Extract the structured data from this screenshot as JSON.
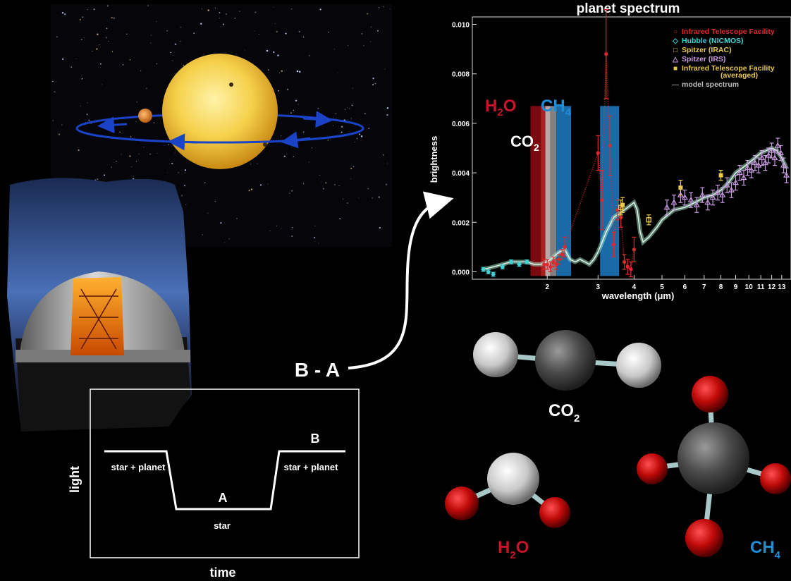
{
  "colors": {
    "background": "#000000",
    "h2o": "#c8142a",
    "ch4": "#1d8fd8",
    "co2": "#ffffff",
    "orbit": "#1a43c8",
    "sun": "#f2c63a",
    "model": "#9fd8c0",
    "irtf": "#e0282e",
    "hubble": "#3fd4d8",
    "irac": "#e8c84a",
    "irs": "#c89ae0"
  },
  "arrow_label": "B - A",
  "molecules": {
    "co2_label": "CO",
    "co2_sub": "2",
    "h2o_label_h": "H",
    "h2o_sub": "2",
    "h2o_label_o": "O",
    "ch4_label": "CH",
    "ch4_sub": "4"
  },
  "light_curve": {
    "ylabel": "light",
    "xlabel": "time",
    "point_a": "A",
    "point_b": "B",
    "label_left": "star + planet",
    "label_right": "star + planet",
    "label_bottom": "star"
  },
  "chart_data": {
    "type": "scatter",
    "title": "planet spectrum",
    "xlabel": "wavelength (μm)",
    "ylabel": "brightness",
    "xscale": "log",
    "xlim": [
      1.1,
      14
    ],
    "ylim": [
      -0.0003,
      0.0103
    ],
    "x_ticks": [
      2,
      3,
      4,
      5,
      6,
      7,
      8,
      9,
      10,
      11,
      12,
      13
    ],
    "y_ticks": [
      "0.000",
      "0.002",
      "0.004",
      "0.006",
      "0.008",
      "0.010"
    ],
    "y_tick_values": [
      0,
      0.002,
      0.004,
      0.006,
      0.008,
      0.01
    ],
    "band_labels": {
      "h2o_h": "H",
      "h2o_sub": "2",
      "h2o_o": "O",
      "ch4": "CH",
      "ch4_sub": "4",
      "co2": "CO",
      "co2_sub": "2"
    },
    "bands": [
      {
        "from": 1.75,
        "to": 1.9,
        "color": "#7a0a10"
      },
      {
        "from": 1.9,
        "to": 1.97,
        "color": "#a82020"
      },
      {
        "from": 1.97,
        "to": 2.05,
        "color": "#b8a8a8"
      },
      {
        "from": 2.05,
        "to": 2.15,
        "color": "#808080"
      },
      {
        "from": 2.15,
        "to": 2.42,
        "color": "#1a6aa8"
      },
      {
        "from": 3.05,
        "to": 3.55,
        "color": "#1a6aa8"
      }
    ],
    "band_top": 0.0067,
    "legend": {
      "position": "top-right",
      "entries": [
        {
          "label": "Infrared Telescope Facility",
          "marker": "○",
          "color": "#e0282e"
        },
        {
          "label": "Hubble  (NICMOS)",
          "marker": "◇",
          "color": "#3fd4d8"
        },
        {
          "label": "Spitzer (IRAC)",
          "marker": "□",
          "color": "#e8c84a"
        },
        {
          "label": "Spitzer (IRS)",
          "marker": "△",
          "color": "#c89ae0"
        },
        {
          "label": "Infrared Telescope Facility",
          "label2": "(averaged)",
          "marker": "■",
          "color": "#e8c84a"
        },
        {
          "label": "model spectrum",
          "marker": "—",
          "color": "#9a9a9a"
        }
      ]
    },
    "series": [
      {
        "name": "model spectrum",
        "style": "line",
        "color": "#9fd8c0",
        "x": [
          1.2,
          1.3,
          1.4,
          1.5,
          1.6,
          1.7,
          1.8,
          1.9,
          2.0,
          2.1,
          2.2,
          2.3,
          2.4,
          2.5,
          2.6,
          2.7,
          2.8,
          2.9,
          3.0,
          3.1,
          3.2,
          3.3,
          3.4,
          3.5,
          3.6,
          3.7,
          3.8,
          3.9,
          4.0,
          4.1,
          4.2,
          4.3,
          4.5,
          4.8,
          5.0,
          5.5,
          6.0,
          6.5,
          7.0,
          7.5,
          8.0,
          8.5,
          9.0,
          9.5,
          10.0,
          10.5,
          11.0,
          11.5,
          12.0,
          12.5,
          13.0,
          13.5
        ],
        "y": [
          0.0001,
          0.0002,
          0.0003,
          0.0004,
          0.0004,
          0.0004,
          0.0003,
          0.0003,
          0.0004,
          0.0006,
          0.0008,
          0.0009,
          0.0005,
          0.0004,
          0.0005,
          0.0004,
          0.0003,
          0.0005,
          0.0008,
          0.0012,
          0.0016,
          0.0019,
          0.0022,
          0.0023,
          0.0024,
          0.0025,
          0.0026,
          0.0027,
          0.0028,
          0.0025,
          0.0016,
          0.0012,
          0.0014,
          0.0018,
          0.0021,
          0.0025,
          0.0026,
          0.0028,
          0.003,
          0.0031,
          0.0033,
          0.0036,
          0.004,
          0.0042,
          0.0044,
          0.0046,
          0.0048,
          0.0049,
          0.005,
          0.0049,
          0.0046,
          0.0042
        ]
      },
      {
        "name": "Hubble  (NICMOS)",
        "style": "diamond",
        "color": "#3fd4d8",
        "x": [
          1.2,
          1.25,
          1.3,
          1.4,
          1.5,
          1.6,
          1.7
        ],
        "y": [
          0.0001,
          0.0,
          -0.0001,
          0.0002,
          0.0004,
          0.0003,
          0.0004
        ],
        "err": [
          8e-05,
          8e-05,
          8e-05,
          8e-05,
          8e-05,
          8e-05,
          8e-05
        ]
      },
      {
        "name": "Infrared Telescope Facility",
        "style": "circle",
        "color": "#e0282e",
        "x": [
          1.95,
          2.0,
          2.05,
          2.1,
          2.15,
          2.2,
          2.25,
          2.3,
          3.0,
          3.1,
          3.2,
          3.3,
          3.4,
          3.5,
          3.6,
          3.7,
          3.8,
          3.9,
          4.0
        ],
        "y": [
          0.0003,
          0.0003,
          0.0002,
          0.0004,
          0.0003,
          0.0005,
          0.0007,
          0.001,
          0.0048,
          0.0029,
          0.0088,
          0.0051,
          0.0011,
          0.0025,
          0.0022,
          0.0004,
          0.0002,
          0.0001,
          0.0009
        ],
        "err": [
          0.0002,
          0.0002,
          0.0002,
          0.0002,
          0.0002,
          0.0002,
          0.0002,
          0.0004,
          0.0007,
          0.0012,
          0.0018,
          0.0012,
          0.0005,
          0.0004,
          0.0004,
          0.0003,
          0.0003,
          0.0003,
          0.0005
        ],
        "dotted": true
      },
      {
        "name": "Spitzer (IRAC)",
        "style": "square",
        "color": "#e8c84a",
        "x": [
          3.6,
          4.5
        ],
        "y": [
          0.0026,
          0.0021
        ],
        "err": [
          0.0003,
          0.0002
        ]
      },
      {
        "name": "Spitzer (IRS)",
        "style": "triangle",
        "color": "#c89ae0",
        "x": [
          5.2,
          5.5,
          5.8,
          6.0,
          6.3,
          6.6,
          6.9,
          7.2,
          7.5,
          7.8,
          8.1,
          8.4,
          8.7,
          9.0,
          9.3,
          9.6,
          9.9,
          10.2,
          10.5,
          10.8,
          11.1,
          11.4,
          11.7,
          12.0,
          12.3,
          12.6,
          12.9,
          13.2,
          13.5
        ],
        "y": [
          0.0026,
          0.0028,
          0.0031,
          0.003,
          0.0029,
          0.0027,
          0.0031,
          0.0028,
          0.003,
          0.0032,
          0.0031,
          0.0035,
          0.0033,
          0.0036,
          0.004,
          0.0038,
          0.0042,
          0.0041,
          0.0044,
          0.0043,
          0.0046,
          0.0044,
          0.0047,
          0.0049,
          0.0046,
          0.0051,
          0.0048,
          0.0043,
          0.0039
        ],
        "err": [
          0.0003,
          0.0003,
          0.0003,
          0.0003,
          0.0003,
          0.0003,
          0.0003,
          0.0003,
          0.0003,
          0.0003,
          0.0003,
          0.0003,
          0.0003,
          0.0003,
          0.0003,
          0.0003,
          0.0003,
          0.0003,
          0.0003,
          0.0003,
          0.0003,
          0.0003,
          0.0003,
          0.0003,
          0.0003,
          0.0003,
          0.0003,
          0.0003,
          0.0003
        ]
      },
      {
        "name": "Infrared Telescope Facility (averaged)",
        "style": "filledsquare",
        "color": "#e8c84a",
        "x": [
          3.65,
          5.8,
          8.0
        ],
        "y": [
          0.0027,
          0.0034,
          0.0039
        ],
        "err": [
          0.0003,
          0.0003,
          0.0002
        ]
      }
    ]
  }
}
